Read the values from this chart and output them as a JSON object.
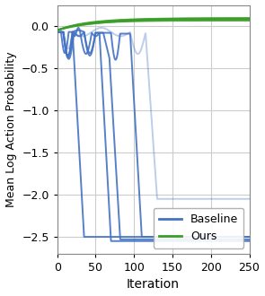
{
  "title": "",
  "xlabel": "Iteration",
  "ylabel": "Mean Log Action Probability",
  "xlim": [
    0,
    250
  ],
  "ylim": [
    -2.7,
    0.25
  ],
  "yticks": [
    0.0,
    -0.5,
    -1.0,
    -1.5,
    -2.0,
    -2.5
  ],
  "xticks": [
    0,
    50,
    100,
    150,
    200,
    250
  ],
  "baseline_color": "#4472c4",
  "ours_color": "#3a9e28",
  "background_color": "#ffffff",
  "grid_color": "#cccccc",
  "figsize": [
    2.95,
    3.3
  ],
  "dpi": 100,
  "legend_loc": "lower right",
  "legend_fontsize": 9
}
